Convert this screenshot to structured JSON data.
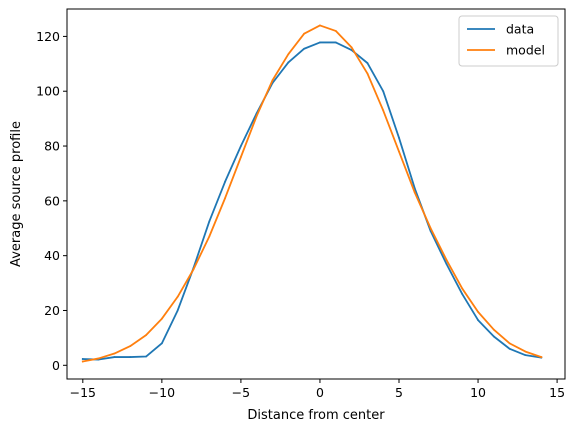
{
  "chart_data": {
    "type": "line",
    "title": "",
    "xlabel": "Distance from center",
    "ylabel": "Average source profile",
    "xlim": [
      -16,
      15.5
    ],
    "ylim": [
      -5,
      130
    ],
    "xticks": [
      -15,
      -10,
      -5,
      0,
      5,
      10,
      15
    ],
    "xtick_labels": [
      "−15",
      "−10",
      "−5",
      "0",
      "5",
      "10",
      "15"
    ],
    "yticks": [
      0,
      20,
      40,
      60,
      80,
      100,
      120
    ],
    "ytick_labels": [
      "0",
      "20",
      "40",
      "60",
      "80",
      "100",
      "120"
    ],
    "grid": false,
    "legend_position": "top-right",
    "x": [
      -15,
      -14,
      -13,
      -12,
      -11,
      -10,
      -9,
      -8,
      -7,
      -6,
      -5,
      -4,
      -3,
      -2,
      -1,
      0,
      1,
      2,
      3,
      4,
      5,
      6,
      7,
      8,
      9,
      10,
      11,
      12,
      13,
      14
    ],
    "series": [
      {
        "name": "data",
        "color": "#1f77b4",
        "values": [
          2.3,
          2.1,
          3.0,
          3.0,
          3.2,
          8.0,
          20.0,
          35.5,
          52.5,
          67.0,
          80.0,
          92.0,
          103.0,
          110.5,
          115.5,
          117.8,
          117.8,
          115.0,
          110.3,
          100.0,
          83.0,
          64.5,
          49.0,
          37.0,
          26.0,
          16.5,
          10.5,
          6.0,
          3.7,
          2.8
        ]
      },
      {
        "name": "model",
        "color": "#ff7f0e",
        "values": [
          1.4,
          2.5,
          4.3,
          7.0,
          11.0,
          17.0,
          25.0,
          35.0,
          47.0,
          61.0,
          76.0,
          91.0,
          104.0,
          113.5,
          121.0,
          124.0,
          122.0,
          116.0,
          106.5,
          93.0,
          78.0,
          63.0,
          50.0,
          38.5,
          28.0,
          19.5,
          13.0,
          8.0,
          5.0,
          3.0
        ]
      }
    ]
  }
}
